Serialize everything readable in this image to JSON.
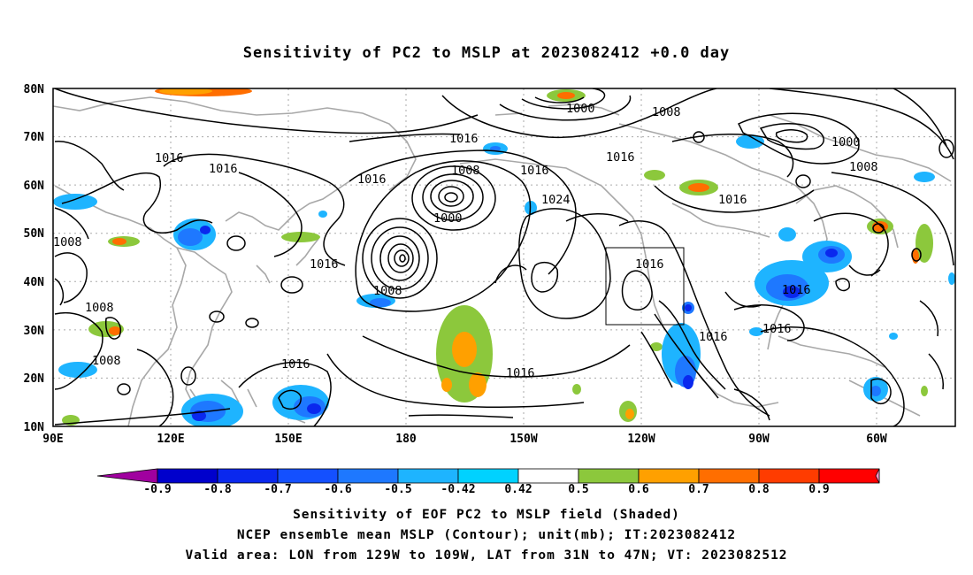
{
  "title": "Sensitivity of PC2 to MSLP at 2023082412 +0.0 day",
  "axes": {
    "lat_labels": [
      "80N",
      "70N",
      "60N",
      "50N",
      "40N",
      "30N",
      "20N",
      "10N"
    ],
    "lon_labels": [
      "90E",
      "120E",
      "150E",
      "180",
      "150W",
      "120W",
      "90W",
      "60W"
    ]
  },
  "contour_labels": [
    "1000",
    "1008",
    "1016",
    "1016",
    "1016",
    "1008",
    "1016",
    "1016",
    "1000",
    "1016",
    "1024",
    "1000",
    "1008",
    "1016",
    "1016",
    "1008",
    "1008",
    "1008",
    "1008",
    "1016",
    "1016",
    "1016",
    "1016",
    "1016"
  ],
  "colorbar": {
    "labels": [
      "-0.9",
      "-0.8",
      "-0.7",
      "-0.6",
      "-0.5",
      "-0.42",
      "0.42",
      "0.5",
      "0.6",
      "0.7",
      "0.8",
      "0.9"
    ],
    "colors": [
      "#a0009f",
      "#0000cc",
      "#0a28ee",
      "#1450ff",
      "#1e78ff",
      "#1eb4ff",
      "#00d2ff",
      "#ffffff",
      "#8cc83c",
      "#ffa000",
      "#ff6e00",
      "#ff3c00",
      "#ff0000",
      "#ff96c8"
    ]
  },
  "selection_box": {
    "lon_range": "129W to 109W",
    "lat_range": "31N to 47N"
  },
  "captions": {
    "line1": "Sensitivity of EOF PC2 to MSLP field (Shaded)",
    "line2": "NCEP ensemble mean MSLP (Contour); unit(mb); IT:2023082412",
    "line3": "Valid area: LON from 129W to 109W, LAT from 31N to 47N; VT: 2023082512"
  }
}
